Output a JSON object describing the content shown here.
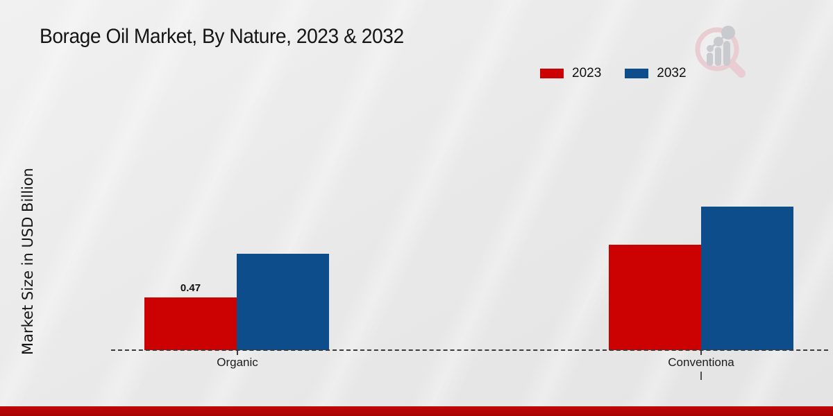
{
  "title": "Borage Oil Market, By Nature, 2023 & 2032",
  "ylabel": "Market Size in USD Billion",
  "legend": [
    {
      "label": "2023",
      "color": "#cc0202"
    },
    {
      "label": "2032",
      "color": "#0d4d8c"
    }
  ],
  "chart_data": {
    "type": "bar",
    "title": "Borage Oil Market, By Nature, 2023 & 2032",
    "ylabel": "Market Size in USD Billion",
    "xlabel": "",
    "categories": [
      "Organic",
      "Conventional"
    ],
    "category_display": [
      "Organic",
      "Conventiona\nl"
    ],
    "series": [
      {
        "name": "2023",
        "color": "#cc0202",
        "values": [
          0.47,
          0.94
        ]
      },
      {
        "name": "2032",
        "color": "#0d4d8c",
        "values": [
          0.86,
          1.28
        ]
      }
    ],
    "value_labels": [
      [
        "0.47",
        null
      ],
      [
        null,
        null
      ]
    ],
    "ylim": [
      0,
      1.4
    ],
    "grid": false,
    "baseline_style": "dashed",
    "legend_position": "top-right"
  },
  "logo": {
    "name": "market-research-magnifier-chart-logo"
  },
  "colors": {
    "background": "#e9e9e9",
    "footer_bar": "#b20404",
    "axis": "#3b3b3b",
    "text": "#151515"
  }
}
